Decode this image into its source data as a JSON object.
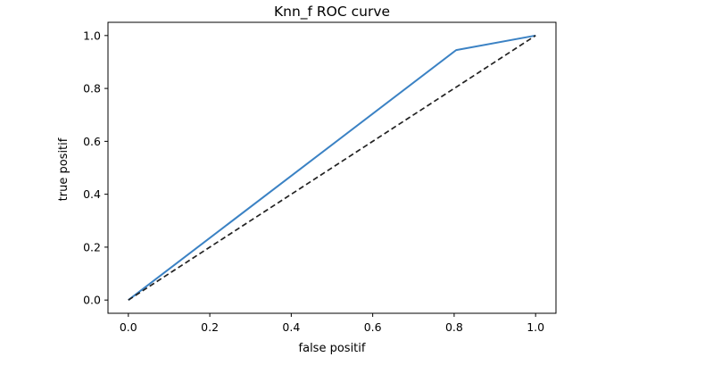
{
  "chart_data": {
    "type": "line",
    "title": "Knn_f ROC curve",
    "xlabel": "false positif",
    "ylabel": "true positif",
    "xlim": [
      -0.05,
      1.05
    ],
    "ylim": [
      -0.05,
      1.05
    ],
    "x_ticks": [
      0.0,
      0.2,
      0.4,
      0.6,
      0.8,
      1.0
    ],
    "x_tick_labels": [
      "0.0",
      "0.2",
      "0.4",
      "0.6",
      "0.8",
      "1.0"
    ],
    "y_ticks": [
      0.0,
      0.2,
      0.4,
      0.6,
      0.8,
      1.0
    ],
    "y_tick_labels": [
      "0.0",
      "0.2",
      "0.4",
      "0.6",
      "0.8",
      "1.0"
    ],
    "grid": false,
    "legend": "none",
    "series": [
      {
        "style": "solid",
        "color": "#3b82c4",
        "x": [
          0.0,
          0.805,
          1.0
        ],
        "y": [
          0.0,
          0.945,
          1.0
        ]
      },
      {
        "style": "dashed",
        "color": "#222222",
        "x": [
          0.0,
          1.0
        ],
        "y": [
          0.0,
          1.0
        ]
      }
    ]
  }
}
